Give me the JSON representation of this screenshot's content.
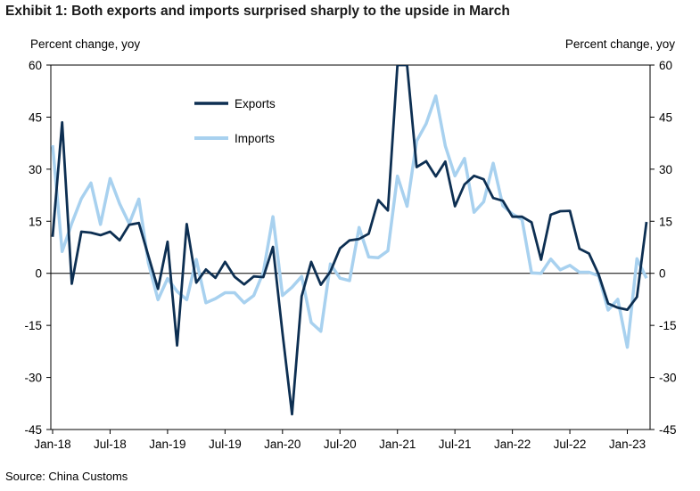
{
  "title": "Exhibit 1: Both exports and imports surprised sharply to the upside in March",
  "source": "Source: China Customs",
  "chart_data": {
    "type": "line",
    "ylabel_left": "Percent change, yoy",
    "ylabel_right": "Percent change, yoy",
    "ylim": [
      -45,
      60
    ],
    "yticks": [
      60,
      45,
      30,
      15,
      0,
      -15,
      -30,
      -45
    ],
    "x_start": "2018-01",
    "x_end": "2023-03",
    "xticks": [
      {
        "label": "Jan-18",
        "index": 0
      },
      {
        "label": "Jul-18",
        "index": 6
      },
      {
        "label": "Jan-19",
        "index": 12
      },
      {
        "label": "Jul-19",
        "index": 18
      },
      {
        "label": "Jan-20",
        "index": 24
      },
      {
        "label": "Jul-20",
        "index": 30
      },
      {
        "label": "Jan-21",
        "index": 36
      },
      {
        "label": "Jul-21",
        "index": 42
      },
      {
        "label": "Jan-22",
        "index": 48
      },
      {
        "label": "Jul-22",
        "index": 54
      },
      {
        "label": "Jan-23",
        "index": 60
      }
    ],
    "legend": "upper-left",
    "series": [
      {
        "name": "Exports",
        "color": "#0d2f52",
        "values": [
          10.5,
          43.5,
          -3,
          12,
          11.7,
          11,
          12,
          9.5,
          14,
          14.5,
          5,
          -4.5,
          9.1,
          -20.8,
          14.2,
          -2.7,
          1.1,
          -1.3,
          3.3,
          -1,
          -3.2,
          -0.9,
          -1.1,
          7.6,
          -17.2,
          -40.6,
          -6.6,
          3.3,
          -3.3,
          0.5,
          7.2,
          9.5,
          9.9,
          11.4,
          21.1,
          18.1,
          60,
          60,
          30.6,
          32.3,
          27.9,
          32.2,
          19.3,
          25.6,
          28.1,
          27.1,
          21.7,
          20.9,
          16.3,
          16.3,
          14.7,
          3.9,
          16.9,
          17.9,
          18.0,
          7.1,
          5.7,
          -0.3,
          -8.7,
          -9.9,
          -10.5,
          -6.8,
          14.8
        ]
      },
      {
        "name": "Imports",
        "color": "#a8d1ef",
        "values": [
          36.9,
          6.3,
          14.4,
          21.5,
          26,
          14.1,
          27.3,
          20,
          14.3,
          21.4,
          3,
          -7.6,
          -1.5,
          -5.2,
          -7.6,
          4,
          -8.5,
          -7.3,
          -5.6,
          -5.6,
          -8.5,
          -6.4,
          0.3,
          16.3,
          -6.4,
          -4,
          -0.9,
          -14.2,
          -16.7,
          2.7,
          -1.4,
          -2.1,
          13.2,
          4.7,
          4.5,
          6.5,
          28,
          19.3,
          38.1,
          43.1,
          51.1,
          36.7,
          28.1,
          33.1,
          17.6,
          20.6,
          31.7,
          19.5,
          17.1,
          15.5,
          0.1,
          0.0,
          4.1,
          1.0,
          2.3,
          0.3,
          0.3,
          -0.7,
          -10.6,
          -7.5,
          -21.3,
          4.2,
          -1.4
        ]
      }
    ]
  }
}
